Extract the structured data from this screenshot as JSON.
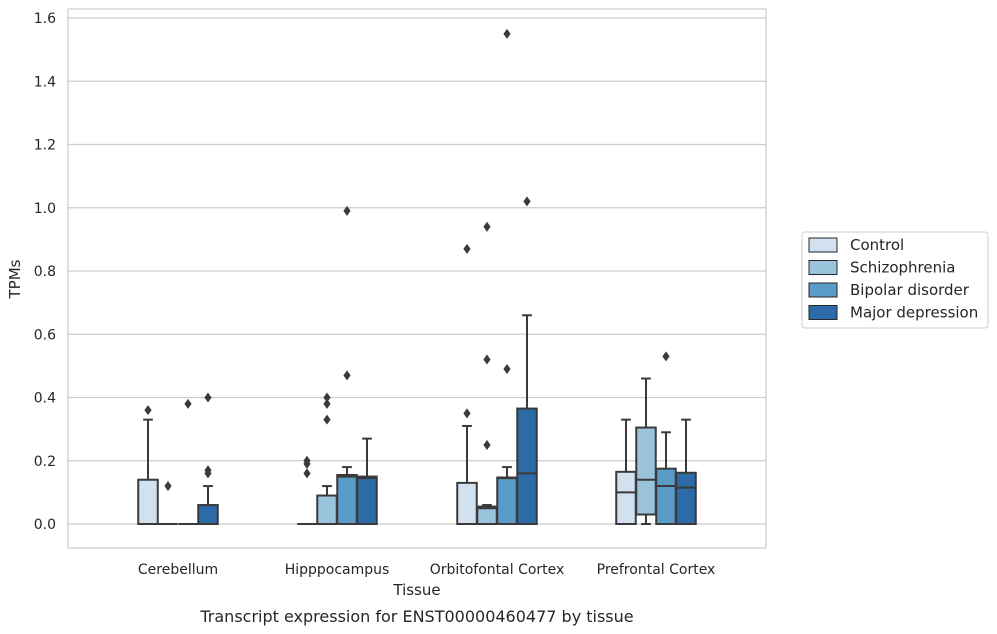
{
  "caption": "Transcript expression for ENST00000460477 by tissue",
  "chart_data": {
    "type": "box",
    "xlabel": "Tissue",
    "ylabel": "TPMs",
    "ylim": [
      -0.075,
      1.63
    ],
    "yticks": [
      0.0,
      0.2,
      0.4,
      0.6,
      0.8,
      1.0,
      1.2,
      1.4,
      1.6
    ],
    "ytick_labels": [
      "0.0",
      "0.2",
      "0.4",
      "0.6",
      "0.8",
      "1.0",
      "1.2",
      "1.4",
      "1.6"
    ],
    "grid": "horizontal",
    "legend_position": "right",
    "categories": [
      "Cerebellum",
      "Hipppocampus",
      "Orbitofontal Cortex",
      "Prefrontal Cortex"
    ],
    "series": [
      {
        "name": "Control",
        "color": "#d2e1f0",
        "boxes": [
          {
            "q1": 0.0,
            "median": 0.0,
            "q3": 0.14,
            "whisker_low": 0.0,
            "whisker_high": 0.33,
            "outliers": [
              0.36
            ]
          },
          {
            "q1": 0.0,
            "median": 0.0,
            "q3": 0.0,
            "whisker_low": 0.0,
            "whisker_high": 0.0,
            "outliers": [
              0.16,
              0.19,
              0.2
            ]
          },
          {
            "q1": 0.0,
            "median": 0.0,
            "q3": 0.13,
            "whisker_low": 0.0,
            "whisker_high": 0.31,
            "outliers": [
              0.35,
              0.87
            ]
          },
          {
            "q1": 0.0,
            "median": 0.1,
            "q3": 0.165,
            "whisker_low": 0.0,
            "whisker_high": 0.33,
            "outliers": []
          }
        ]
      },
      {
        "name": "Schizophrenia",
        "color": "#9ac3dc",
        "boxes": [
          {
            "q1": 0.0,
            "median": 0.0,
            "q3": 0.0,
            "whisker_low": 0.0,
            "whisker_high": 0.0,
            "outliers": [
              0.12
            ]
          },
          {
            "q1": 0.0,
            "median": 0.0,
            "q3": 0.09,
            "whisker_low": 0.0,
            "whisker_high": 0.12,
            "outliers": [
              0.33,
              0.38,
              0.4
            ]
          },
          {
            "q1": 0.0,
            "median": 0.05,
            "q3": 0.055,
            "whisker_low": 0.0,
            "whisker_high": 0.06,
            "outliers": [
              0.25,
              0.52,
              0.94
            ]
          },
          {
            "q1": 0.03,
            "median": 0.14,
            "q3": 0.305,
            "whisker_low": 0.0,
            "whisker_high": 0.46,
            "outliers": []
          }
        ]
      },
      {
        "name": "Bipolar disorder",
        "color": "#5a9bc8",
        "boxes": [
          {
            "q1": 0.0,
            "median": 0.0,
            "q3": 0.0,
            "whisker_low": 0.0,
            "whisker_high": 0.0,
            "outliers": [
              0.38
            ]
          },
          {
            "q1": 0.0,
            "median": 0.15,
            "q3": 0.155,
            "whisker_low": 0.0,
            "whisker_high": 0.18,
            "outliers": [
              0.47,
              0.99
            ]
          },
          {
            "q1": 0.0,
            "median": 0.145,
            "q3": 0.147,
            "whisker_low": 0.0,
            "whisker_high": 0.18,
            "outliers": [
              0.49,
              1.55
            ]
          },
          {
            "q1": 0.0,
            "median": 0.12,
            "q3": 0.175,
            "whisker_low": 0.0,
            "whisker_high": 0.29,
            "outliers": [
              0.53
            ]
          }
        ]
      },
      {
        "name": "Major depression",
        "color": "#2d6aa8",
        "boxes": [
          {
            "q1": 0.0,
            "median": 0.0,
            "q3": 0.06,
            "whisker_low": 0.0,
            "whisker_high": 0.12,
            "outliers": [
              0.16,
              0.17,
              0.4
            ]
          },
          {
            "q1": 0.0,
            "median": 0.145,
            "q3": 0.15,
            "whisker_low": 0.0,
            "whisker_high": 0.27,
            "outliers": []
          },
          {
            "q1": 0.0,
            "median": 0.16,
            "q3": 0.365,
            "whisker_low": 0.0,
            "whisker_high": 0.66,
            "outliers": [
              1.02
            ]
          },
          {
            "q1": 0.0,
            "median": 0.115,
            "q3": 0.162,
            "whisker_low": 0.0,
            "whisker_high": 0.33,
            "outliers": []
          }
        ]
      }
    ]
  }
}
